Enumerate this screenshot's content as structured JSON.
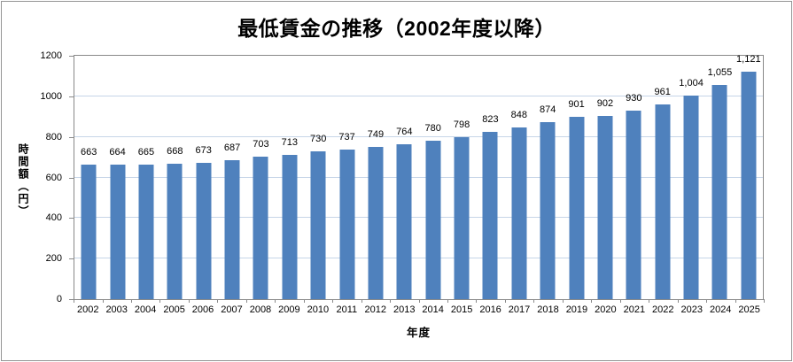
{
  "chart_data": {
    "type": "bar",
    "title": "最低賃金の推移（2002年度以降）",
    "xlabel": "年度",
    "ylabel": "時間額（円）",
    "categories": [
      "2002",
      "2003",
      "2004",
      "2005",
      "2006",
      "2007",
      "2008",
      "2009",
      "2010",
      "2011",
      "2012",
      "2013",
      "2014",
      "2015",
      "2016",
      "2017",
      "2018",
      "2019",
      "2020",
      "2021",
      "2022",
      "2023",
      "2024",
      "2025"
    ],
    "values": [
      663,
      664,
      665,
      668,
      673,
      687,
      703,
      713,
      730,
      737,
      749,
      764,
      780,
      798,
      823,
      848,
      874,
      901,
      902,
      930,
      961,
      1004,
      1055,
      1121
    ],
    "value_labels": [
      "663",
      "664",
      "665",
      "668",
      "673",
      "687",
      "703",
      "713",
      "730",
      "737",
      "749",
      "764",
      "780",
      "798",
      "823",
      "848",
      "874",
      "901",
      "902",
      "930",
      "961",
      "1,004",
      "1,055",
      "1,121"
    ],
    "ylim": [
      0,
      1200
    ],
    "yticks": [
      0,
      200,
      400,
      600,
      800,
      1000,
      1200
    ],
    "grid": true,
    "legend_position": "none",
    "bar_color": "#4f81bd",
    "gridline_color": "#c6d5e8",
    "axis_color": "#898989"
  }
}
